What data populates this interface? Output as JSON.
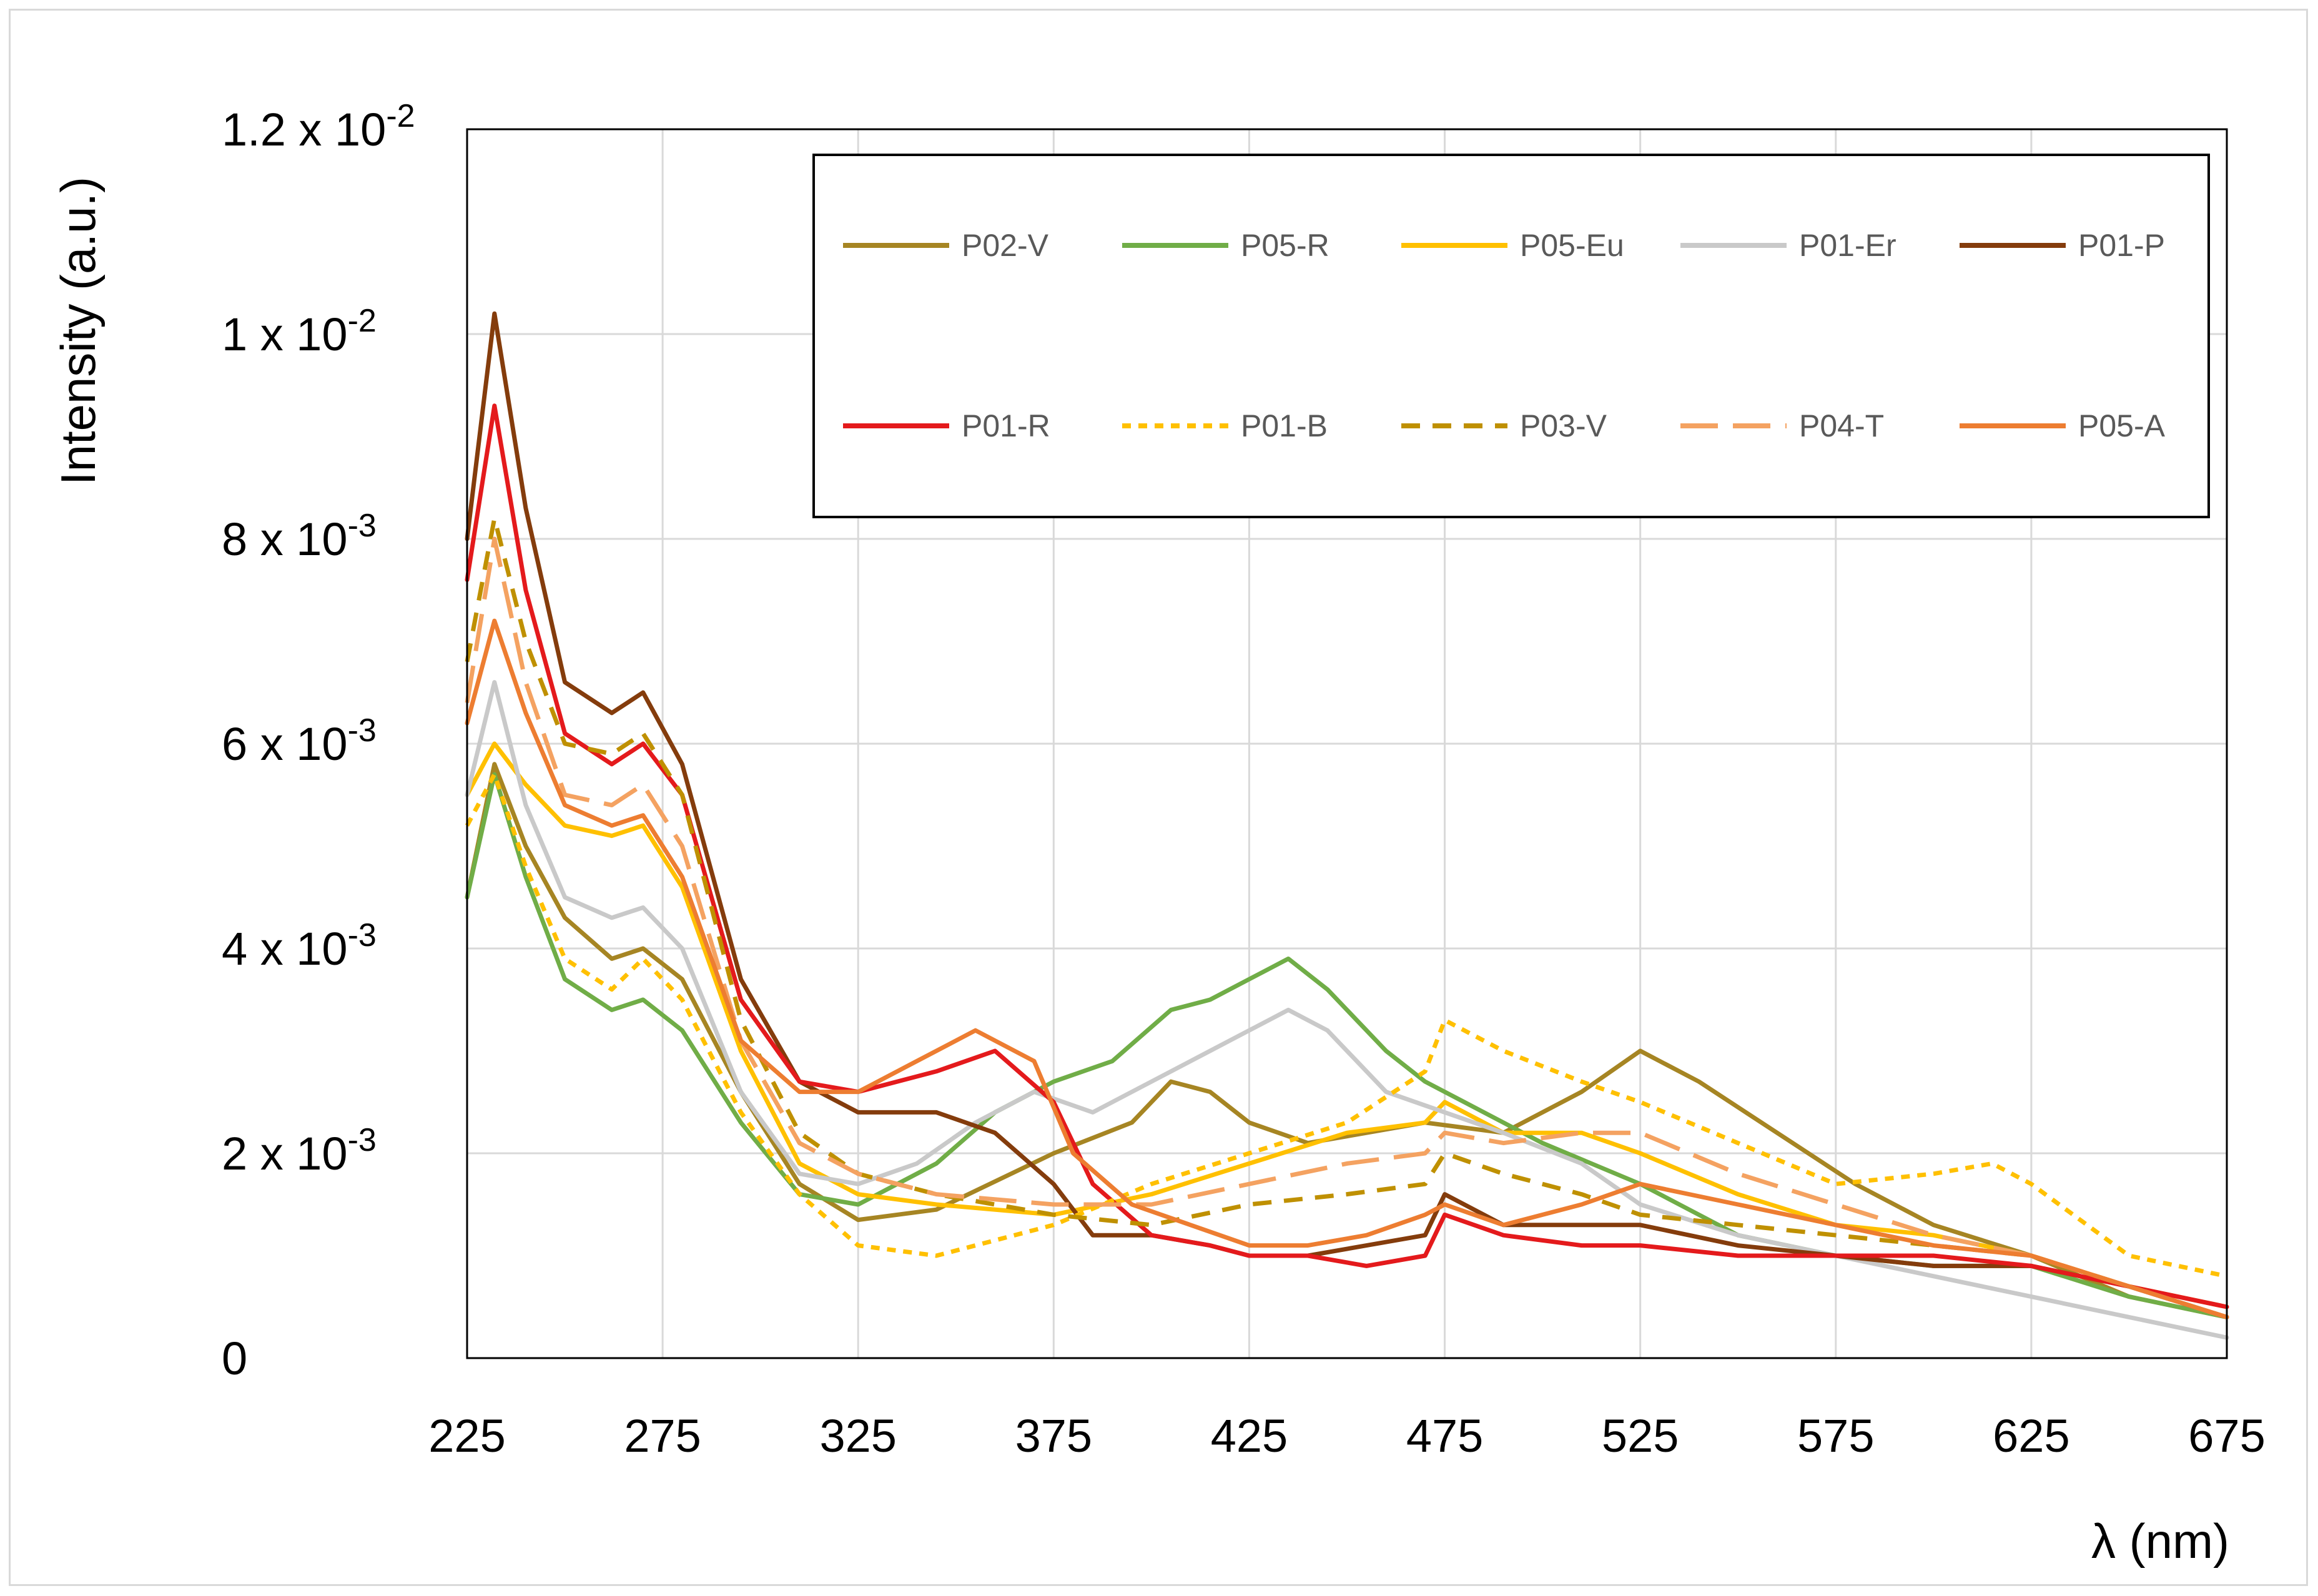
{
  "chart_data": {
    "type": "line",
    "title": "",
    "xlabel": "λ (nm)",
    "ylabel": "Intensity (a.u.)",
    "xlim": [
      225,
      675
    ],
    "ylim": [
      0,
      0.012
    ],
    "grid": true,
    "legend_position": "top-right",
    "x_ticks": [
      "225",
      "275",
      "325",
      "375",
      "425",
      "475",
      "525",
      "575",
      "625",
      "675"
    ],
    "y_ticks": [
      {
        "value": 0,
        "base": "0",
        "exp": ""
      },
      {
        "value": 0.002,
        "base": "2 x 10",
        "exp": "-3"
      },
      {
        "value": 0.004,
        "base": "4 x 10",
        "exp": "-3"
      },
      {
        "value": 0.006,
        "base": "6 x 10",
        "exp": "-3"
      },
      {
        "value": 0.008,
        "base": "8 x 10",
        "exp": "-3"
      },
      {
        "value": 0.01,
        "base": "1 x 10",
        "exp": "-2"
      },
      {
        "value": 0.012,
        "base": "1.2 x 10",
        "exp": "-2"
      }
    ],
    "series": [
      {
        "name": "P02-V",
        "color": "#a68523",
        "dash": "solid",
        "x": [
          225,
          232,
          240,
          250,
          262,
          270,
          280,
          295,
          310,
          325,
          345,
          375,
          395,
          405,
          415,
          425,
          440,
          455,
          470,
          490,
          510,
          525,
          540,
          560,
          580,
          600,
          625,
          650,
          675
        ],
        "y": [
          0.0045,
          0.0058,
          0.005,
          0.0043,
          0.0039,
          0.004,
          0.0037,
          0.0026,
          0.0017,
          0.00135,
          0.00145,
          0.002,
          0.0023,
          0.0027,
          0.0026,
          0.0023,
          0.0021,
          0.0022,
          0.0023,
          0.0022,
          0.0026,
          0.003,
          0.0027,
          0.0022,
          0.0017,
          0.0013,
          0.001,
          0.0006,
          0.0004
        ]
      },
      {
        "name": "P05-R",
        "color": "#70ad47",
        "dash": "solid",
        "x": [
          225,
          232,
          240,
          250,
          262,
          270,
          280,
          295,
          310,
          325,
          345,
          360,
          375,
          390,
          405,
          415,
          425,
          435,
          445,
          460,
          470,
          480,
          500,
          525,
          550,
          575,
          600,
          625,
          650,
          675
        ],
        "y": [
          0.0045,
          0.0057,
          0.0047,
          0.0037,
          0.0034,
          0.0035,
          0.0032,
          0.0023,
          0.0016,
          0.0015,
          0.0019,
          0.0024,
          0.0027,
          0.0029,
          0.0034,
          0.0035,
          0.0037,
          0.0039,
          0.0036,
          0.003,
          0.0027,
          0.0025,
          0.0021,
          0.0017,
          0.0012,
          0.001,
          0.0009,
          0.0009,
          0.0006,
          0.0004
        ]
      },
      {
        "name": "P05-Eu",
        "color": "#ffc000",
        "dash": "solid",
        "x": [
          225,
          232,
          240,
          250,
          262,
          270,
          280,
          295,
          310,
          325,
          345,
          375,
          400,
          425,
          450,
          470,
          475,
          490,
          510,
          525,
          550,
          575,
          600,
          625,
          650,
          675
        ],
        "y": [
          0.0055,
          0.006,
          0.0056,
          0.0052,
          0.0051,
          0.0052,
          0.0046,
          0.003,
          0.0019,
          0.0016,
          0.0015,
          0.0014,
          0.0016,
          0.0019,
          0.0022,
          0.0023,
          0.0025,
          0.0022,
          0.0022,
          0.002,
          0.0016,
          0.0013,
          0.0012,
          0.001,
          0.0007,
          0.0005
        ]
      },
      {
        "name": "P01-Er",
        "color": "#c9c9c9",
        "dash": "solid",
        "x": [
          225,
          232,
          240,
          250,
          262,
          270,
          280,
          295,
          310,
          325,
          340,
          355,
          370,
          385,
          400,
          415,
          425,
          435,
          445,
          460,
          475,
          490,
          510,
          525,
          550,
          575,
          600,
          625,
          650,
          675
        ],
        "y": [
          0.0055,
          0.0066,
          0.0054,
          0.0045,
          0.0043,
          0.0044,
          0.004,
          0.0026,
          0.0018,
          0.0017,
          0.0019,
          0.0023,
          0.0026,
          0.0024,
          0.0027,
          0.003,
          0.0032,
          0.0034,
          0.0032,
          0.0026,
          0.0024,
          0.0022,
          0.0019,
          0.0015,
          0.0012,
          0.001,
          0.0008,
          0.0006,
          0.0004,
          0.0002
        ]
      },
      {
        "name": "P01-P",
        "color": "#843c0c",
        "dash": "solid",
        "x": [
          225,
          232,
          240,
          250,
          262,
          270,
          280,
          295,
          310,
          325,
          345,
          360,
          375,
          385,
          400,
          415,
          425,
          440,
          455,
          470,
          475,
          490,
          510,
          525,
          550,
          575,
          600,
          625,
          650,
          675
        ],
        "y": [
          0.008,
          0.0102,
          0.0083,
          0.0066,
          0.0063,
          0.0065,
          0.0058,
          0.0037,
          0.0027,
          0.0024,
          0.0024,
          0.0022,
          0.0017,
          0.0012,
          0.0012,
          0.0011,
          0.001,
          0.001,
          0.0011,
          0.0012,
          0.0016,
          0.0013,
          0.0013,
          0.0013,
          0.0011,
          0.001,
          0.0009,
          0.0009,
          0.0007,
          0.0004
        ]
      },
      {
        "name": "P01-R",
        "color": "#e41a1c",
        "dash": "solid",
        "x": [
          225,
          232,
          240,
          250,
          262,
          270,
          280,
          295,
          310,
          325,
          345,
          360,
          375,
          385,
          400,
          415,
          425,
          440,
          455,
          470,
          475,
          490,
          510,
          525,
          550,
          575,
          600,
          625,
          650,
          675
        ],
        "y": [
          0.0076,
          0.0093,
          0.0075,
          0.0061,
          0.0058,
          0.006,
          0.0055,
          0.0035,
          0.0027,
          0.0026,
          0.0028,
          0.003,
          0.0025,
          0.0017,
          0.0012,
          0.0011,
          0.001,
          0.001,
          0.0009,
          0.001,
          0.0014,
          0.0012,
          0.0011,
          0.0011,
          0.001,
          0.001,
          0.001,
          0.0009,
          0.0007,
          0.0005
        ]
      },
      {
        "name": "P01-B",
        "color": "#ffc000",
        "dash": "short",
        "x": [
          225,
          232,
          240,
          250,
          262,
          270,
          280,
          295,
          310,
          325,
          345,
          375,
          400,
          425,
          450,
          470,
          475,
          490,
          510,
          525,
          550,
          575,
          600,
          615,
          625,
          650,
          675
        ],
        "y": [
          0.0052,
          0.0057,
          0.0048,
          0.0039,
          0.0036,
          0.0039,
          0.0035,
          0.0024,
          0.0016,
          0.0011,
          0.001,
          0.0013,
          0.0017,
          0.002,
          0.0023,
          0.0028,
          0.0033,
          0.003,
          0.0027,
          0.0025,
          0.0021,
          0.0017,
          0.0018,
          0.0019,
          0.0017,
          0.001,
          0.0008
        ]
      },
      {
        "name": "P03-V",
        "color": "#bf9000",
        "dash": "dash",
        "x": [
          225,
          232,
          240,
          250,
          262,
          270,
          280,
          295,
          310,
          325,
          345,
          375,
          400,
          425,
          450,
          470,
          475,
          490,
          510,
          525,
          550,
          575,
          600,
          625,
          650,
          675
        ],
        "y": [
          0.0068,
          0.0082,
          0.007,
          0.006,
          0.0059,
          0.0061,
          0.0055,
          0.0033,
          0.0022,
          0.0018,
          0.0016,
          0.0014,
          0.0013,
          0.0015,
          0.0016,
          0.0017,
          0.002,
          0.0018,
          0.0016,
          0.0014,
          0.0013,
          0.0012,
          0.0011,
          0.001,
          0.0007,
          0.0004
        ]
      },
      {
        "name": "P04-T",
        "color": "#f4a261",
        "dash": "longdash",
        "x": [
          225,
          232,
          240,
          250,
          262,
          270,
          280,
          295,
          310,
          325,
          345,
          375,
          400,
          425,
          450,
          470,
          475,
          490,
          510,
          525,
          550,
          575,
          600,
          625,
          650,
          675
        ],
        "y": [
          0.0064,
          0.008,
          0.0066,
          0.0055,
          0.0054,
          0.0056,
          0.005,
          0.0031,
          0.0021,
          0.0018,
          0.0016,
          0.0015,
          0.0015,
          0.0017,
          0.0019,
          0.002,
          0.0022,
          0.0021,
          0.0022,
          0.0022,
          0.0018,
          0.0015,
          0.0012,
          0.001,
          0.0007,
          0.0004
        ]
      },
      {
        "name": "P05-A",
        "color": "#ed7d31",
        "dash": "solid",
        "x": [
          225,
          232,
          240,
          250,
          262,
          270,
          280,
          295,
          310,
          325,
          340,
          355,
          370,
          380,
          395,
          410,
          425,
          440,
          455,
          470,
          475,
          490,
          510,
          525,
          550,
          575,
          600,
          625,
          650,
          675
        ],
        "y": [
          0.0062,
          0.0072,
          0.0063,
          0.0054,
          0.0052,
          0.0053,
          0.0047,
          0.0031,
          0.0026,
          0.0026,
          0.0029,
          0.0032,
          0.0029,
          0.002,
          0.0015,
          0.0013,
          0.0011,
          0.0011,
          0.0012,
          0.0014,
          0.0015,
          0.0013,
          0.0015,
          0.0017,
          0.0015,
          0.0013,
          0.0011,
          0.001,
          0.0007,
          0.0004
        ]
      }
    ]
  }
}
